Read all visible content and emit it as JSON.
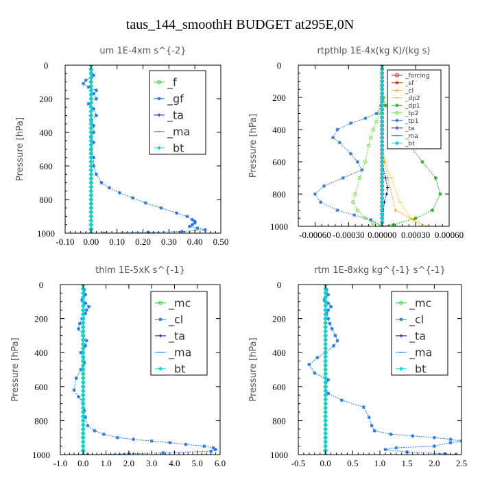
{
  "title": "taus_144_smoothH  BUDGET at295E,0N",
  "chart_data": [
    {
      "type": "line",
      "title": "um   1E-4xm s^{-2}",
      "ylabel": "Pressure [hPa]",
      "xlim": [
        -0.1,
        0.5
      ],
      "ylim": [
        1000,
        0
      ],
      "xticks": [
        "-0.10",
        "0.00",
        "0.10",
        "0.20",
        "0.30",
        "0.40",
        "0.50"
      ],
      "xtick_values": [
        -0.1,
        0.0,
        0.1,
        0.2,
        0.3,
        0.4,
        0.5
      ],
      "yticks": [
        "0",
        "200",
        "400",
        "600",
        "800",
        "1000"
      ],
      "ytick_values": [
        0,
        200,
        400,
        600,
        800,
        1000
      ],
      "legend_position": "top-right",
      "series": [
        {
          "name": "_f",
          "color": "#22cc22",
          "marker": "circle",
          "x": [
            0,
            0,
            0,
            0,
            0,
            0,
            0,
            0,
            0,
            0,
            0
          ],
          "y": [
            0,
            100,
            200,
            300,
            400,
            500,
            600,
            700,
            800,
            900,
            1000
          ]
        },
        {
          "name": "_gf",
          "color": "#1a73e8",
          "marker": "star",
          "x": [
            0.0,
            0.0,
            0.01,
            -0.02,
            -0.03,
            -0.01,
            0.02,
            0.01,
            0.02,
            -0.01,
            0.01,
            0.02,
            0.0,
            0.01,
            0.01,
            0.0,
            0.01,
            0.0,
            0.01,
            0.01,
            0.02,
            0.04,
            0.07,
            0.11,
            0.16,
            0.21,
            0.27,
            0.33,
            0.37,
            0.39,
            0.4,
            0.4,
            0.39,
            0.38,
            0.41,
            0.44,
            0.35,
            0.22,
            0.05
          ],
          "y": [
            0,
            30,
            60,
            90,
            110,
            130,
            150,
            170,
            200,
            230,
            260,
            300,
            330,
            360,
            400,
            430,
            460,
            500,
            550,
            600,
            650,
            700,
            730,
            760,
            790,
            820,
            850,
            880,
            900,
            920,
            930,
            940,
            950,
            960,
            970,
            980,
            990,
            995,
            1000
          ]
        },
        {
          "name": "_ta",
          "color": "#0000cc",
          "marker": "plus",
          "x": [
            0,
            0,
            0,
            0,
            0,
            0,
            0,
            0,
            0
          ],
          "y": [
            0,
            150,
            300,
            450,
            600,
            750,
            900,
            980,
            1000
          ]
        },
        {
          "name": "_ma",
          "color": "#1e88e5",
          "marker": "dash",
          "x": [
            0,
            0,
            0,
            0,
            0,
            0,
            0,
            0,
            0
          ],
          "y": [
            0,
            150,
            300,
            450,
            600,
            750,
            900,
            980,
            1000
          ]
        },
        {
          "name": "_bt",
          "color": "#00d8e0",
          "marker": "diamond",
          "x": [
            0,
            0,
            0,
            0,
            0,
            0,
            0,
            0,
            0
          ],
          "y": [
            0,
            150,
            300,
            450,
            600,
            750,
            900,
            980,
            1000
          ]
        }
      ]
    },
    {
      "type": "line",
      "title": "rtpthlp   1E-4x(kg K)/(kg s)",
      "ylabel": "Pressure [hPa]",
      "xlim": [
        -0.00075,
        0.0006
      ],
      "ylim": [
        1000,
        0
      ],
      "xticks": [
        "-0.00060",
        "-0.00030",
        "0.00000",
        "0.00030",
        "0.00060"
      ],
      "xtick_values": [
        -0.0006,
        -0.0003,
        0.0,
        0.0003,
        0.0006
      ],
      "yticks": [
        "0",
        "200",
        "400",
        "600",
        "800",
        "1000"
      ],
      "ytick_values": [
        0,
        200,
        400,
        600,
        800,
        1000
      ],
      "legend_position": "top-right",
      "series": [
        {
          "name": "_forcing",
          "color": "#dd0000",
          "marker": "circle",
          "x": [
            0,
            0,
            0,
            0,
            0,
            0,
            0,
            0,
            0,
            0,
            0
          ],
          "y": [
            0,
            100,
            200,
            300,
            400,
            500,
            600,
            700,
            800,
            900,
            1000
          ]
        },
        {
          "name": "_sf",
          "color": "#cc3300",
          "marker": "star",
          "x": [
            0,
            0,
            0,
            0,
            0,
            0,
            0,
            0,
            0,
            0,
            0
          ],
          "y": [
            0,
            100,
            200,
            300,
            400,
            500,
            600,
            700,
            800,
            900,
            1000
          ]
        },
        {
          "name": "_cl",
          "color": "#ff9900",
          "marker": "plus",
          "x": [
            0,
            0,
            0,
            0,
            0,
            0,
            2e-05,
            5e-05,
            0.00012,
            0.00028,
            0.0004
          ],
          "y": [
            0,
            100,
            200,
            300,
            400,
            500,
            600,
            700,
            900,
            960,
            1000
          ]
        },
        {
          "name": "_dp2",
          "color": "#eecc00",
          "marker": "dash",
          "x": [
            0,
            0,
            0,
            0,
            0,
            0,
            3e-05,
            8e-05,
            0.00016,
            0.00026,
            0.00035
          ],
          "y": [
            0,
            100,
            200,
            300,
            400,
            500,
            600,
            700,
            850,
            950,
            1000
          ]
        },
        {
          "name": "_dp1",
          "color": "#22aa22",
          "marker": "star",
          "x": [
            0,
            1e-05,
            3e-05,
            8e-05,
            0.00015,
            0.0002,
            0.00022,
            0.00025,
            0.00036,
            0.00048,
            0.00052,
            0.00045,
            0.0003,
            0.0001,
            0
          ],
          "y": [
            0,
            200,
            250,
            300,
            350,
            400,
            450,
            500,
            600,
            700,
            800,
            900,
            950,
            990,
            1000
          ]
        },
        {
          "name": "_tp2",
          "color": "#66dd33",
          "marker": "circle",
          "x": [
            0,
            -2e-05,
            -5e-05,
            -8e-05,
            -0.0001,
            -0.00012,
            -0.00015,
            -0.0002,
            -0.00024,
            -0.00026,
            -0.00022,
            -0.00015,
            -8e-05,
            0
          ],
          "y": [
            0,
            300,
            350,
            400,
            450,
            500,
            600,
            700,
            800,
            850,
            900,
            950,
            980,
            1000
          ]
        },
        {
          "name": "_tp1",
          "color": "#3377cc",
          "marker": "star",
          "x": [
            0,
            -1e-05,
            -5e-05,
            -0.00015,
            -0.00028,
            -0.0004,
            -0.00044,
            -0.00038,
            -0.00028,
            -0.00022,
            -0.00018,
            -0.00035,
            -0.00052,
            -0.0006,
            -0.00055,
            -0.0004,
            -0.00025,
            -0.0001,
            0
          ],
          "y": [
            0,
            250,
            300,
            330,
            360,
            400,
            450,
            480,
            550,
            600,
            650,
            700,
            750,
            800,
            850,
            900,
            930,
            960,
            1000
          ]
        },
        {
          "name": "_ta",
          "color": "#0000cc",
          "marker": "plus",
          "x": [
            0,
            0,
            0,
            0,
            0,
            0,
            3e-05,
            5e-05,
            4e-05,
            2e-05,
            0
          ],
          "y": [
            0,
            100,
            200,
            300,
            400,
            600,
            700,
            760,
            800,
            850,
            1000
          ]
        },
        {
          "name": "_ma",
          "color": "#1e88e5",
          "marker": "dash",
          "x": [
            0,
            0,
            0,
            0,
            0,
            0,
            0,
            0,
            0,
            0,
            0
          ],
          "y": [
            0,
            100,
            200,
            300,
            400,
            500,
            600,
            700,
            800,
            900,
            1000
          ]
        },
        {
          "name": "_bt",
          "color": "#00d8e0",
          "marker": "diamond",
          "x": [
            0,
            0,
            0,
            0,
            0,
            0,
            0,
            0,
            0,
            0,
            0
          ],
          "y": [
            0,
            100,
            200,
            300,
            400,
            500,
            600,
            700,
            800,
            900,
            1000
          ]
        }
      ]
    },
    {
      "type": "line",
      "title": "thlm   1E-5xK s^{-1}",
      "ylabel": "Pressure [hPa]",
      "xlim": [
        -1.0,
        6.0
      ],
      "ylim": [
        1000,
        0
      ],
      "xticks": [
        "-1.0",
        "0.0",
        "1.0",
        "2.0",
        "3.0",
        "4.0",
        "5.0",
        "6.0"
      ],
      "xtick_values": [
        -1,
        0,
        1,
        2,
        3,
        4,
        5,
        6
      ],
      "yticks": [
        "0",
        "200",
        "400",
        "600",
        "800",
        "1000"
      ],
      "ytick_values": [
        0,
        200,
        400,
        600,
        800,
        1000
      ],
      "legend_position": "top-right",
      "series": [
        {
          "name": "_mc",
          "color": "#22cc22",
          "marker": "circle",
          "x": [
            0,
            0,
            0,
            0,
            0,
            0,
            0,
            0,
            0,
            0,
            0
          ],
          "y": [
            0,
            100,
            200,
            300,
            400,
            500,
            600,
            700,
            800,
            900,
            1000
          ]
        },
        {
          "name": "_cl",
          "color": "#1a73e8",
          "marker": "star",
          "x": [
            0,
            0.05,
            0.1,
            -0.05,
            0.1,
            0.25,
            0.15,
            0.1,
            -0.05,
            -0.15,
            -0.2,
            0.0,
            0.15,
            0.1,
            -0.1,
            0.0,
            0.05,
            -0.1,
            -0.3,
            -0.4,
            -0.2,
            0.0,
            0.05,
            0.1,
            0.2,
            0.5,
            0.9,
            1.5,
            2.2,
            3.0,
            3.8,
            4.5,
            5.3,
            5.7,
            5.8,
            5.6,
            3.5,
            2.0,
            0.2
          ],
          "y": [
            0,
            30,
            60,
            90,
            110,
            130,
            150,
            170,
            200,
            230,
            260,
            300,
            330,
            360,
            400,
            430,
            460,
            500,
            550,
            620,
            660,
            700,
            740,
            780,
            830,
            860,
            880,
            900,
            910,
            920,
            930,
            940,
            950,
            960,
            970,
            980,
            990,
            995,
            1000
          ]
        },
        {
          "name": "_ta",
          "color": "#0000cc",
          "marker": "plus",
          "x": [
            0,
            0,
            0,
            0,
            0,
            0,
            0,
            0,
            0
          ],
          "y": [
            0,
            150,
            300,
            450,
            600,
            750,
            900,
            980,
            1000
          ]
        },
        {
          "name": "_ma",
          "color": "#1e88e5",
          "marker": "dash",
          "x": [
            0,
            0,
            0,
            0,
            0,
            0,
            0,
            0,
            0
          ],
          "y": [
            0,
            150,
            300,
            450,
            600,
            750,
            900,
            980,
            1000
          ]
        },
        {
          "name": "_bt",
          "color": "#00d8e0",
          "marker": "diamond",
          "x": [
            0,
            0,
            0,
            0,
            0,
            0,
            0,
            0,
            0
          ],
          "y": [
            0,
            150,
            300,
            450,
            600,
            750,
            900,
            980,
            1000
          ]
        }
      ]
    },
    {
      "type": "line",
      "title": "rtm   1E-8xkg kg^{-1} s^{-1}",
      "ylabel": "Pressure [hPa]",
      "xlim": [
        -0.5,
        2.5
      ],
      "ylim": [
        1000,
        0
      ],
      "xticks": [
        "-0.5",
        "0.0",
        "0.5",
        "1.0",
        "1.5",
        "2.0",
        "2.5"
      ],
      "xtick_values": [
        -0.5,
        0.0,
        0.5,
        1.0,
        1.5,
        2.0,
        2.5
      ],
      "yticks": [
        "0",
        "200",
        "400",
        "600",
        "800",
        "1000"
      ],
      "ytick_values": [
        0,
        200,
        400,
        600,
        800,
        1000
      ],
      "legend_position": "top-right",
      "series": [
        {
          "name": "_mc",
          "color": "#22cc22",
          "marker": "circle",
          "x": [
            0,
            0,
            0,
            0,
            0,
            0,
            0,
            0,
            0,
            0,
            0
          ],
          "y": [
            0,
            100,
            200,
            300,
            400,
            500,
            600,
            700,
            800,
            900,
            1000
          ]
        },
        {
          "name": "_cl",
          "color": "#1a73e8",
          "marker": "star",
          "x": [
            0,
            0.02,
            0.05,
            -0.02,
            0.05,
            0.1,
            0.05,
            0.02,
            0.05,
            0.08,
            0.12,
            0.18,
            0.22,
            0.15,
            0.0,
            -0.15,
            -0.3,
            -0.2,
            0.05,
            0.0,
            0.05,
            0.3,
            0.7,
            0.8,
            0.85,
            0.9,
            1.2,
            1.6,
            2.0,
            2.3,
            2.5,
            2.3,
            2.0,
            1.3,
            1.1,
            1.5,
            2.2,
            2.4
          ],
          "y": [
            0,
            30,
            60,
            90,
            110,
            130,
            150,
            170,
            200,
            230,
            260,
            300,
            330,
            360,
            400,
            430,
            470,
            520,
            560,
            600,
            640,
            680,
            720,
            780,
            830,
            860,
            880,
            890,
            900,
            910,
            920,
            930,
            950,
            960,
            970,
            985,
            995,
            1000
          ]
        },
        {
          "name": "_ta",
          "color": "#0000cc",
          "marker": "plus",
          "x": [
            0,
            0,
            0,
            0,
            0,
            0,
            0,
            0,
            0
          ],
          "y": [
            0,
            150,
            300,
            450,
            600,
            750,
            900,
            980,
            1000
          ]
        },
        {
          "name": "_ma",
          "color": "#1e88e5",
          "marker": "dash",
          "x": [
            0,
            0,
            0,
            0,
            0,
            0,
            0,
            0,
            0
          ],
          "y": [
            0,
            150,
            300,
            450,
            600,
            750,
            900,
            980,
            1000
          ]
        },
        {
          "name": "_bt",
          "color": "#00d8e0",
          "marker": "diamond",
          "x": [
            0,
            0,
            0,
            0,
            0,
            0,
            0,
            0,
            0
          ],
          "y": [
            0,
            150,
            300,
            450,
            600,
            750,
            900,
            980,
            1000
          ]
        }
      ]
    }
  ]
}
